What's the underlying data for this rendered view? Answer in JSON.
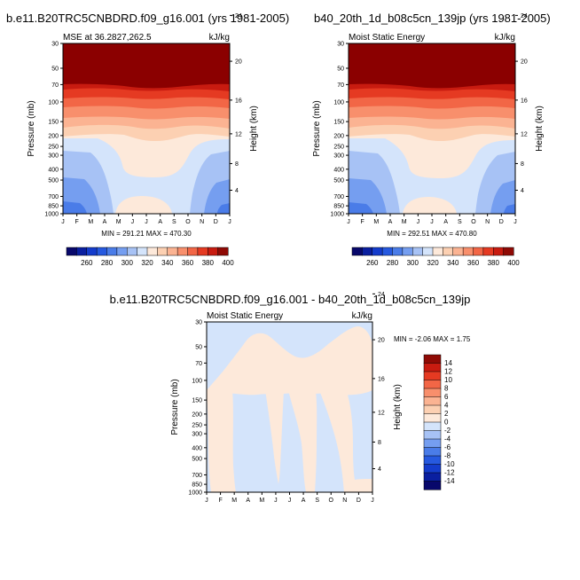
{
  "palette": {
    "diverging": [
      "#08086b",
      "#0a1fa0",
      "#143ccc",
      "#2659df",
      "#4a7ce8",
      "#759ef0",
      "#a7c2f5",
      "#d4e4fb",
      "#fde9da",
      "#fcd0b2",
      "#fbb392",
      "#f88f6c",
      "#f26646",
      "#e53a22",
      "#c81b10",
      "#8f0a05"
    ],
    "contour": {
      "deep_red": "#8b0000",
      "reds": [
        "#c81b10",
        "#e53a22",
        "#f26646",
        "#f88f6c",
        "#fbb392",
        "#fcd0b2"
      ],
      "peach": "#fde9da",
      "light_blue": "#d4e4fb",
      "mid_blue": "#a7c2f5",
      "blue": "#759ef0",
      "dark_blue": "#4a7ce8"
    }
  },
  "chart_data": [
    {
      "type": "contour",
      "title": "b.e11.B20TRC5CNBDRD.f09_g16.001 (yrs 1981-2005)",
      "subtitle_left": "MSE at 36.2827,262.5",
      "subtitle_right": "kJ/kg",
      "ylabel": "Pressure (mb)",
      "ylabel_right": "Height (km)",
      "x_ticks": [
        "J",
        "F",
        "M",
        "A",
        "M",
        "J",
        "J",
        "A",
        "S",
        "O",
        "N",
        "D",
        "J"
      ],
      "y_ticks": [
        "30",
        "50",
        "70",
        "100",
        "150",
        "200",
        "250",
        "300",
        "400",
        "500",
        "700",
        "850",
        "1000"
      ],
      "y_ticks_right": [
        "24",
        "20",
        "16",
        "12",
        "8",
        "4"
      ],
      "stats": "MIN = 291.21  MAX = 470.30"
    },
    {
      "type": "contour",
      "title": "b40_20th_1d_b08c5cn_139jp (yrs 1981-2005)",
      "subtitle_left": "Moist Static Energy",
      "subtitle_right": "kJ/kg",
      "ylabel": "Pressure (mb)",
      "ylabel_right": "Height (km)",
      "x_ticks": [
        "J",
        "F",
        "M",
        "A",
        "M",
        "J",
        "J",
        "A",
        "S",
        "O",
        "N",
        "D",
        "J"
      ],
      "y_ticks": [
        "30",
        "50",
        "70",
        "100",
        "150",
        "200",
        "250",
        "300",
        "400",
        "500",
        "700",
        "850",
        "1000"
      ],
      "y_ticks_right": [
        "24",
        "20",
        "16",
        "12",
        "8",
        "4"
      ],
      "stats": "MIN = 292.51  MAX = 470.80"
    },
    {
      "type": "contour",
      "title": "b.e11.B20TRC5CNBDRD.f09_g16.001 - b40_20th_1d_b08c5cn_139jp",
      "subtitle_left": "Moist Static Energy",
      "subtitle_right": "kJ/kg",
      "ylabel": "Pressure (mb)",
      "ylabel_right": "Height (km)",
      "x_ticks": [
        "J",
        "F",
        "M",
        "A",
        "M",
        "J",
        "J",
        "A",
        "S",
        "O",
        "N",
        "D",
        "J"
      ],
      "y_ticks": [
        "30",
        "50",
        "70",
        "100",
        "150",
        "200",
        "250",
        "300",
        "400",
        "500",
        "700",
        "850",
        "1000"
      ],
      "y_ticks_right": [
        "24",
        "20",
        "16",
        "12",
        "8",
        "4"
      ],
      "stats": "MIN = -2.06  MAX =   1.75"
    }
  ],
  "colorbar_top": {
    "orientation": "horizontal",
    "labels": [
      "260",
      "280",
      "300",
      "320",
      "340",
      "360",
      "380",
      "400"
    ]
  },
  "colorbar_diff": {
    "orientation": "vertical",
    "labels": [
      "14",
      "12",
      "10",
      "8",
      "6",
      "4",
      "2",
      "0",
      "-2",
      "-4",
      "-6",
      "-8",
      "-10",
      "-12",
      "-14"
    ]
  }
}
